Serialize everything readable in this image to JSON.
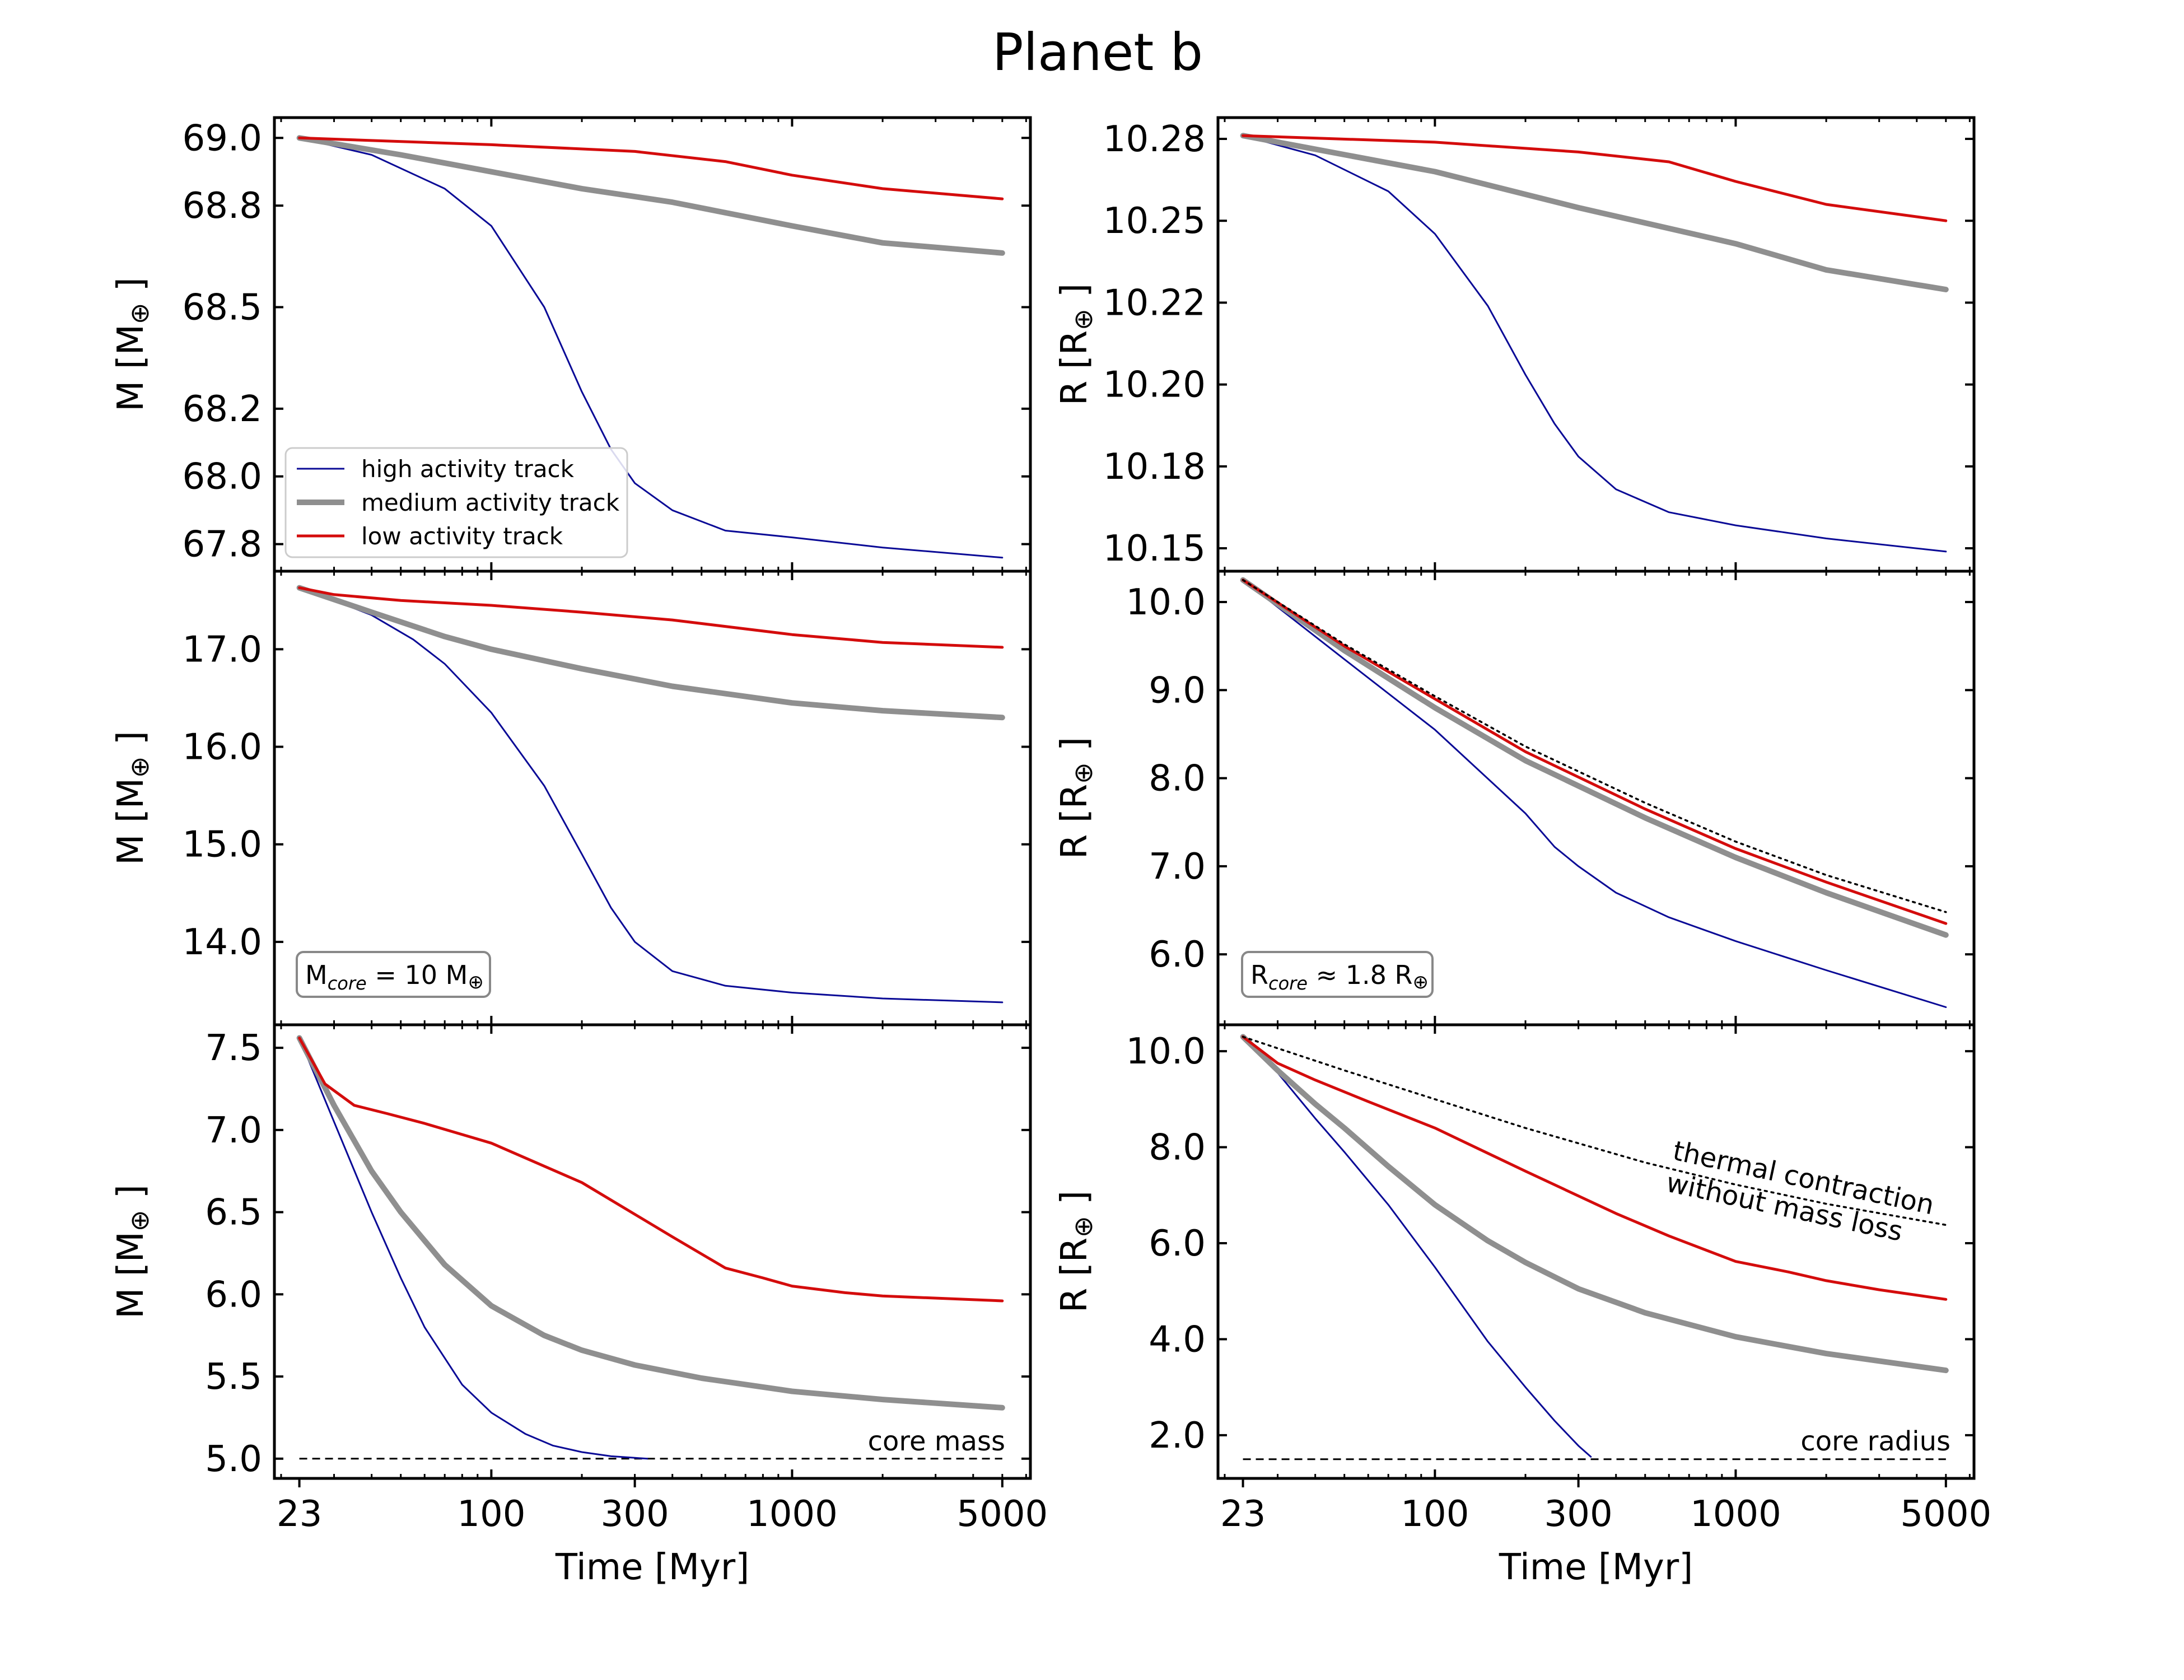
{
  "title": "Planet b",
  "x_axis_label": "Time [Myr]",
  "x_ticks": [
    {
      "value": 23,
      "label": "23"
    },
    {
      "value": 100,
      "label": "100"
    },
    {
      "value": 300,
      "label": "300"
    },
    {
      "value": 1000,
      "label": "1000"
    },
    {
      "value": 5000,
      "label": "5000"
    }
  ],
  "x_range": [
    19,
    6200
  ],
  "legend": [
    {
      "key": "high",
      "label": "high activity track"
    },
    {
      "key": "medium",
      "label": "medium activity track"
    },
    {
      "key": "low",
      "label": "low activity track"
    }
  ],
  "colors": {
    "high": "#0a0a96",
    "medium": "#8f8f8f",
    "low": "#d40c0c",
    "reference": "#000000"
  },
  "chart_data": [
    {
      "type": "line",
      "panel": "top-left",
      "xlabel": "",
      "ylabel": "M [M⊕]",
      "ylim": [
        67.72,
        69.06
      ],
      "yticks": [
        {
          "value": 67.8,
          "label": "67.8"
        },
        {
          "value": 68.0,
          "label": "68.0"
        },
        {
          "value": 68.2,
          "label": "68.2"
        },
        {
          "value": 68.5,
          "label": "68.5"
        },
        {
          "value": 68.8,
          "label": "68.8"
        },
        {
          "value": 69.0,
          "label": "69.0"
        }
      ],
      "series": [
        {
          "key": "high",
          "name": "high activity track",
          "x": [
            23,
            40,
            70,
            100,
            150,
            200,
            250,
            300,
            400,
            600,
            1000,
            2000,
            5000
          ],
          "y": [
            69.0,
            68.95,
            68.85,
            68.74,
            68.5,
            68.25,
            68.08,
            67.98,
            67.9,
            67.84,
            67.82,
            67.79,
            67.76
          ]
        },
        {
          "key": "medium",
          "name": "medium activity track",
          "x": [
            23,
            50,
            100,
            200,
            400,
            1000,
            2000,
            5000
          ],
          "y": [
            69.0,
            68.95,
            68.9,
            68.85,
            68.81,
            68.74,
            68.69,
            68.66
          ]
        },
        {
          "key": "low",
          "name": "low activity track",
          "x": [
            23,
            100,
            300,
            600,
            1000,
            2000,
            5000
          ],
          "y": [
            69.0,
            68.98,
            68.96,
            68.93,
            68.89,
            68.85,
            68.82
          ]
        }
      ],
      "legend_position": "lower-left"
    },
    {
      "type": "line",
      "panel": "top-right",
      "xlabel": "",
      "ylabel": "R [R⊕]",
      "ylim": [
        10.143,
        10.2815
      ],
      "yticks": [
        {
          "value": 10.15,
          "label": "10.15"
        },
        {
          "value": 10.175,
          "label": "10.18"
        },
        {
          "value": 10.2,
          "label": "10.20"
        },
        {
          "value": 10.225,
          "label": "10.22"
        },
        {
          "value": 10.25,
          "label": "10.25"
        },
        {
          "value": 10.275,
          "label": "10.28"
        }
      ],
      "series": [
        {
          "key": "high",
          "name": "high activity track",
          "x": [
            23,
            40,
            70,
            100,
            150,
            200,
            250,
            300,
            400,
            600,
            1000,
            2000,
            5000
          ],
          "y": [
            10.276,
            10.27,
            10.259,
            10.246,
            10.224,
            10.203,
            10.188,
            10.178,
            10.168,
            10.161,
            10.157,
            10.153,
            10.149
          ]
        },
        {
          "key": "medium",
          "name": "medium activity track",
          "x": [
            23,
            100,
            300,
            1000,
            2000,
            5000
          ],
          "y": [
            10.276,
            10.265,
            10.254,
            10.243,
            10.235,
            10.229
          ]
        },
        {
          "key": "low",
          "name": "low activity track",
          "x": [
            23,
            100,
            300,
            600,
            1000,
            2000,
            5000
          ],
          "y": [
            10.276,
            10.274,
            10.271,
            10.268,
            10.262,
            10.255,
            10.25
          ]
        }
      ]
    },
    {
      "type": "line",
      "panel": "middle-left",
      "xlabel": "",
      "ylabel": "M [M⊕]",
      "ylim": [
        13.15,
        17.8
      ],
      "yticks": [
        {
          "value": 14.0,
          "label": "14.0"
        },
        {
          "value": 15.0,
          "label": "15.0"
        },
        {
          "value": 16.0,
          "label": "16.0"
        },
        {
          "value": 17.0,
          "label": "17.0"
        }
      ],
      "series": [
        {
          "key": "high",
          "name": "high activity track",
          "x": [
            23,
            30,
            40,
            55,
            70,
            100,
            150,
            200,
            250,
            300,
            400,
            600,
            1000,
            2000,
            5000
          ],
          "y": [
            17.63,
            17.5,
            17.35,
            17.1,
            16.85,
            16.35,
            15.6,
            14.9,
            14.35,
            14.0,
            13.7,
            13.55,
            13.48,
            13.42,
            13.38
          ]
        },
        {
          "key": "medium",
          "name": "medium activity track",
          "x": [
            23,
            40,
            70,
            100,
            200,
            400,
            1000,
            2000,
            5000
          ],
          "y": [
            17.63,
            17.38,
            17.13,
            17.0,
            16.8,
            16.62,
            16.45,
            16.37,
            16.3
          ]
        },
        {
          "key": "low",
          "name": "low activity track",
          "x": [
            23,
            30,
            50,
            100,
            200,
            400,
            1000,
            2000,
            5000
          ],
          "y": [
            17.63,
            17.56,
            17.5,
            17.45,
            17.38,
            17.3,
            17.15,
            17.07,
            17.02
          ]
        }
      ],
      "annotation_box": "M_core = 10 M⊕"
    },
    {
      "type": "line",
      "panel": "middle-right",
      "xlabel": "",
      "ylabel": "R [R⊕]",
      "ylim": [
        5.2,
        10.35
      ],
      "yticks": [
        {
          "value": 6.0,
          "label": "6.0"
        },
        {
          "value": 7.0,
          "label": "7.0"
        },
        {
          "value": 8.0,
          "label": "8.0"
        },
        {
          "value": 9.0,
          "label": "9.0"
        },
        {
          "value": 10.0,
          "label": "10.0"
        }
      ],
      "series": [
        {
          "key": "high",
          "name": "high activity track",
          "x": [
            23,
            50,
            100,
            200,
            250,
            300,
            400,
            600,
            1000,
            2000,
            5000
          ],
          "y": [
            10.25,
            9.35,
            8.55,
            7.6,
            7.22,
            7.0,
            6.7,
            6.42,
            6.15,
            5.82,
            5.4
          ]
        },
        {
          "key": "medium",
          "name": "medium activity track",
          "x": [
            23,
            50,
            100,
            200,
            500,
            1000,
            2000,
            5000
          ],
          "y": [
            10.25,
            9.45,
            8.8,
            8.2,
            7.55,
            7.1,
            6.7,
            6.22
          ]
        },
        {
          "key": "low",
          "name": "low activity track",
          "x": [
            23,
            50,
            100,
            200,
            500,
            1000,
            2000,
            5000
          ],
          "y": [
            10.25,
            9.5,
            8.9,
            8.3,
            7.65,
            7.2,
            6.82,
            6.35
          ]
        },
        {
          "key": "reference",
          "name": "thermal contraction without mass loss",
          "dotted": true,
          "x": [
            23,
            50,
            100,
            200,
            500,
            1000,
            2000,
            5000
          ],
          "y": [
            10.25,
            9.52,
            8.93,
            8.36,
            7.72,
            7.28,
            6.9,
            6.48
          ]
        }
      ],
      "annotation_box": "R_core ≈ 1.8 R⊕"
    },
    {
      "type": "line",
      "panel": "bottom-left",
      "xlabel": "Time [Myr]",
      "ylabel": "M [M⊕]",
      "ylim": [
        4.88,
        7.64
      ],
      "yticks": [
        {
          "value": 5.0,
          "label": "5.0"
        },
        {
          "value": 5.5,
          "label": "5.5"
        },
        {
          "value": 6.0,
          "label": "6.0"
        },
        {
          "value": 6.5,
          "label": "6.5"
        },
        {
          "value": 7.0,
          "label": "7.0"
        },
        {
          "value": 7.5,
          "label": "7.5"
        }
      ],
      "series": [
        {
          "key": "high",
          "name": "high activity track",
          "x": [
            23,
            30,
            40,
            50,
            60,
            80,
            100,
            130,
            160,
            200,
            250,
            300,
            330
          ],
          "y": [
            7.56,
            7.05,
            6.5,
            6.1,
            5.8,
            5.45,
            5.28,
            5.15,
            5.08,
            5.04,
            5.015,
            5.005,
            5.0
          ]
        },
        {
          "key": "medium",
          "name": "medium activity track",
          "x": [
            23,
            30,
            40,
            50,
            70,
            100,
            150,
            200,
            300,
            500,
            1000,
            2000,
            5000
          ],
          "y": [
            7.56,
            7.15,
            6.75,
            6.5,
            6.18,
            5.93,
            5.75,
            5.66,
            5.57,
            5.49,
            5.41,
            5.36,
            5.31
          ]
        },
        {
          "key": "low",
          "name": "low activity track",
          "x": [
            23,
            28,
            35,
            45,
            60,
            100,
            200,
            400,
            600,
            800,
            1000,
            1500,
            2000,
            5000
          ],
          "y": [
            7.56,
            7.28,
            7.15,
            7.1,
            7.04,
            6.92,
            6.68,
            6.35,
            6.16,
            6.1,
            6.05,
            6.01,
            5.99,
            5.96
          ]
        }
      ],
      "reference_line": {
        "label": "core mass",
        "value": 5.0
      }
    },
    {
      "type": "line",
      "panel": "bottom-right",
      "xlabel": "Time [Myr]",
      "ylabel": "R [R⊕]",
      "ylim": [
        1.1,
        10.55
      ],
      "yticks": [
        {
          "value": 2.0,
          "label": "2.0"
        },
        {
          "value": 4.0,
          "label": "4.0"
        },
        {
          "value": 6.0,
          "label": "6.0"
        },
        {
          "value": 8.0,
          "label": "8.0"
        },
        {
          "value": 10.0,
          "label": "10.0"
        }
      ],
      "series": [
        {
          "key": "high",
          "name": "high activity track",
          "x": [
            23,
            30,
            40,
            50,
            70,
            100,
            150,
            200,
            250,
            300,
            330
          ],
          "y": [
            10.3,
            9.55,
            8.6,
            7.9,
            6.8,
            5.5,
            3.95,
            3.0,
            2.3,
            1.78,
            1.55
          ]
        },
        {
          "key": "medium",
          "name": "medium activity track",
          "x": [
            23,
            30,
            40,
            50,
            70,
            100,
            150,
            200,
            300,
            500,
            1000,
            2000,
            5000
          ],
          "y": [
            10.3,
            9.6,
            8.9,
            8.4,
            7.6,
            6.8,
            6.05,
            5.6,
            5.05,
            4.55,
            4.05,
            3.7,
            3.35
          ]
        },
        {
          "key": "low",
          "name": "low activity track",
          "x": [
            23,
            30,
            40,
            60,
            100,
            200,
            400,
            600,
            1000,
            1500,
            2000,
            3000,
            5000
          ],
          "y": [
            10.3,
            9.75,
            9.4,
            8.95,
            8.4,
            7.5,
            6.62,
            6.15,
            5.62,
            5.4,
            5.22,
            5.03,
            4.83
          ]
        },
        {
          "key": "reference",
          "name": "thermal contraction without mass loss",
          "dotted": true,
          "x": [
            23,
            50,
            100,
            200,
            500,
            1000,
            2000,
            5000
          ],
          "y": [
            10.3,
            9.6,
            9.0,
            8.4,
            7.68,
            7.22,
            6.82,
            6.38
          ]
        }
      ],
      "reference_line": {
        "label": "core radius",
        "value": 1.5
      },
      "annotation_rotated": [
        "thermal contraction",
        "without mass loss"
      ]
    }
  ],
  "text": {
    "m_axis_label": "M [M",
    "r_axis_label": "R [R",
    "earth_symbol": "⊕",
    "close_bracket": "]",
    "mass_box_prefix": "M",
    "mass_box_sub": "core",
    "mass_box_suffix": " = 10 M",
    "radius_box_prefix": "R",
    "radius_box_sub": "core",
    "radius_box_suffix": " ≈ 1.8 R",
    "core_mass": "core mass",
    "core_radius": "core radius",
    "thermal_1": "thermal contraction",
    "thermal_2": "without mass loss"
  }
}
